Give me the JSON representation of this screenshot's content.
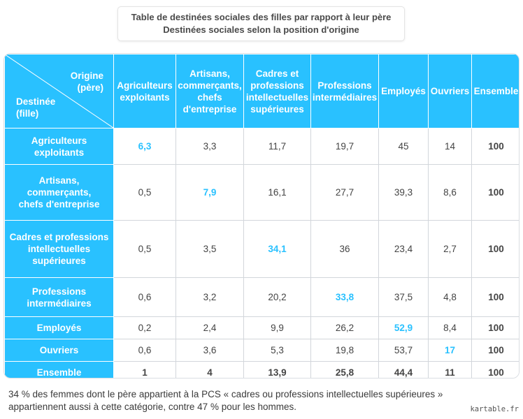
{
  "title": {
    "line1": "Table de destinées sociales des filles par rapport à leur père",
    "line2": "Destinées sociales selon la position d'origine"
  },
  "corner": {
    "origin": [
      "Origine",
      "(père)"
    ],
    "destination": [
      "Destinée",
      "(fille)"
    ]
  },
  "chart_data": {
    "type": "table",
    "columns": [
      [
        "Agriculteurs",
        "exploitants"
      ],
      [
        "Artisans,",
        "commerçants,",
        "chefs",
        "d'entreprise"
      ],
      [
        "Cadres et",
        "professions",
        "intellectuelles",
        "supérieures"
      ],
      [
        "Professions",
        "intermédiaires"
      ],
      [
        "Employés"
      ],
      [
        "Ouvriers"
      ],
      [
        "Ensemble"
      ]
    ],
    "rows": [
      {
        "label": [
          "Agriculteurs",
          "exploitants"
        ],
        "values": [
          "6,3",
          "3,3",
          "11,7",
          "19,7",
          "45",
          "14",
          "100"
        ]
      },
      {
        "label": [
          "Artisans,",
          "commerçants,",
          "chefs d'entreprise"
        ],
        "values": [
          "0,5",
          "7,9",
          "16,1",
          "27,7",
          "39,3",
          "8,6",
          "100"
        ]
      },
      {
        "label": [
          "Cadres et professions",
          "intellectuelles",
          "supérieures"
        ],
        "values": [
          "0,5",
          "3,5",
          "34,1",
          "36",
          "23,4",
          "2,7",
          "100"
        ]
      },
      {
        "label": [
          "Professions",
          "intermédiaires"
        ],
        "values": [
          "0,6",
          "3,2",
          "20,2",
          "33,8",
          "37,5",
          "4,8",
          "100"
        ]
      },
      {
        "label": [
          "Employés"
        ],
        "values": [
          "0,2",
          "2,4",
          "9,9",
          "26,2",
          "52,9",
          "8,4",
          "100"
        ]
      },
      {
        "label": [
          "Ouvriers"
        ],
        "values": [
          "0,6",
          "3,6",
          "5,3",
          "19,8",
          "53,7",
          "17",
          "100"
        ]
      },
      {
        "label": [
          "Ensemble"
        ],
        "values": [
          "1",
          "4",
          "13,9",
          "25,8",
          "44,4",
          "11",
          "100"
        ]
      }
    ]
  },
  "note": {
    "line1": "34 % des femmes dont le père appartient à la PCS « cadres ou professions intellectuelles supérieures »",
    "line2": "appartiennent aussi à cette catégorie, contre 47 % pour les hommes."
  },
  "watermark": "kartable.fr",
  "colors": {
    "accent": "#29c1ff",
    "text": "#444444",
    "border": "#d2d6db"
  }
}
